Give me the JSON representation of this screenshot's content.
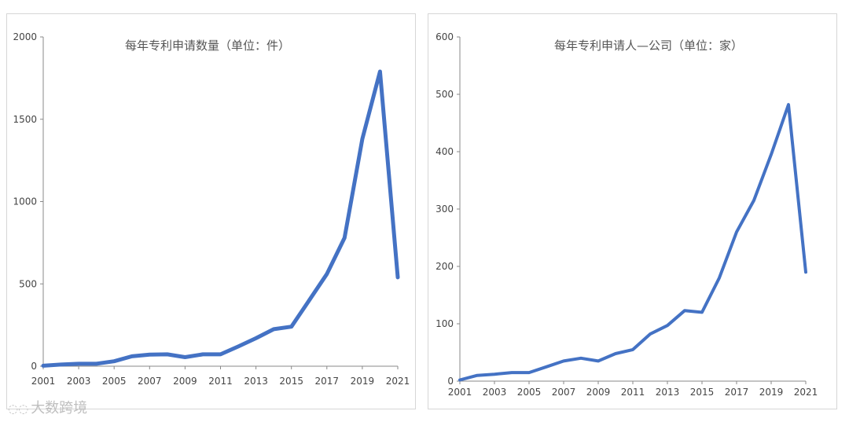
{
  "chart_data": [
    {
      "type": "line",
      "title": "每年专利申请数量（单位：件）",
      "x": [
        2001,
        2002,
        2003,
        2004,
        2005,
        2006,
        2007,
        2008,
        2009,
        2010,
        2011,
        2012,
        2013,
        2014,
        2015,
        2016,
        2017,
        2018,
        2019,
        2020,
        2021
      ],
      "series": [
        {
          "values": [
            3,
            10,
            15,
            15,
            30,
            60,
            70,
            72,
            55,
            72,
            72,
            120,
            170,
            225,
            240,
            400,
            560,
            780,
            1380,
            1790,
            540
          ]
        }
      ],
      "ylim": [
        0,
        2000
      ],
      "yticks": [
        0,
        500,
        1000,
        1500,
        2000
      ],
      "xticks": [
        2001,
        2003,
        2005,
        2007,
        2009,
        2011,
        2013,
        2015,
        2017,
        2019,
        2021
      ],
      "line_color": "#4472c4"
    },
    {
      "type": "line",
      "title": "每年专利申请人—公司（单位：家）",
      "x": [
        2001,
        2002,
        2003,
        2004,
        2005,
        2006,
        2007,
        2008,
        2009,
        2010,
        2011,
        2012,
        2013,
        2014,
        2015,
        2016,
        2017,
        2018,
        2019,
        2020,
        2021
      ],
      "series": [
        {
          "values": [
            2,
            10,
            12,
            15,
            15,
            25,
            35,
            40,
            35,
            48,
            55,
            82,
            97,
            123,
            120,
            180,
            260,
            315,
            395,
            482,
            190
          ]
        }
      ],
      "ylim": [
        0,
        600
      ],
      "yticks": [
        0,
        100,
        200,
        300,
        400,
        500,
        600
      ],
      "xticks": [
        2001,
        2003,
        2005,
        2007,
        2009,
        2011,
        2013,
        2015,
        2017,
        2019,
        2021
      ],
      "line_color": "#4472c4"
    }
  ],
  "watermark": {
    "text": "大数跨境",
    "icon": "speech-bubble-icon"
  }
}
